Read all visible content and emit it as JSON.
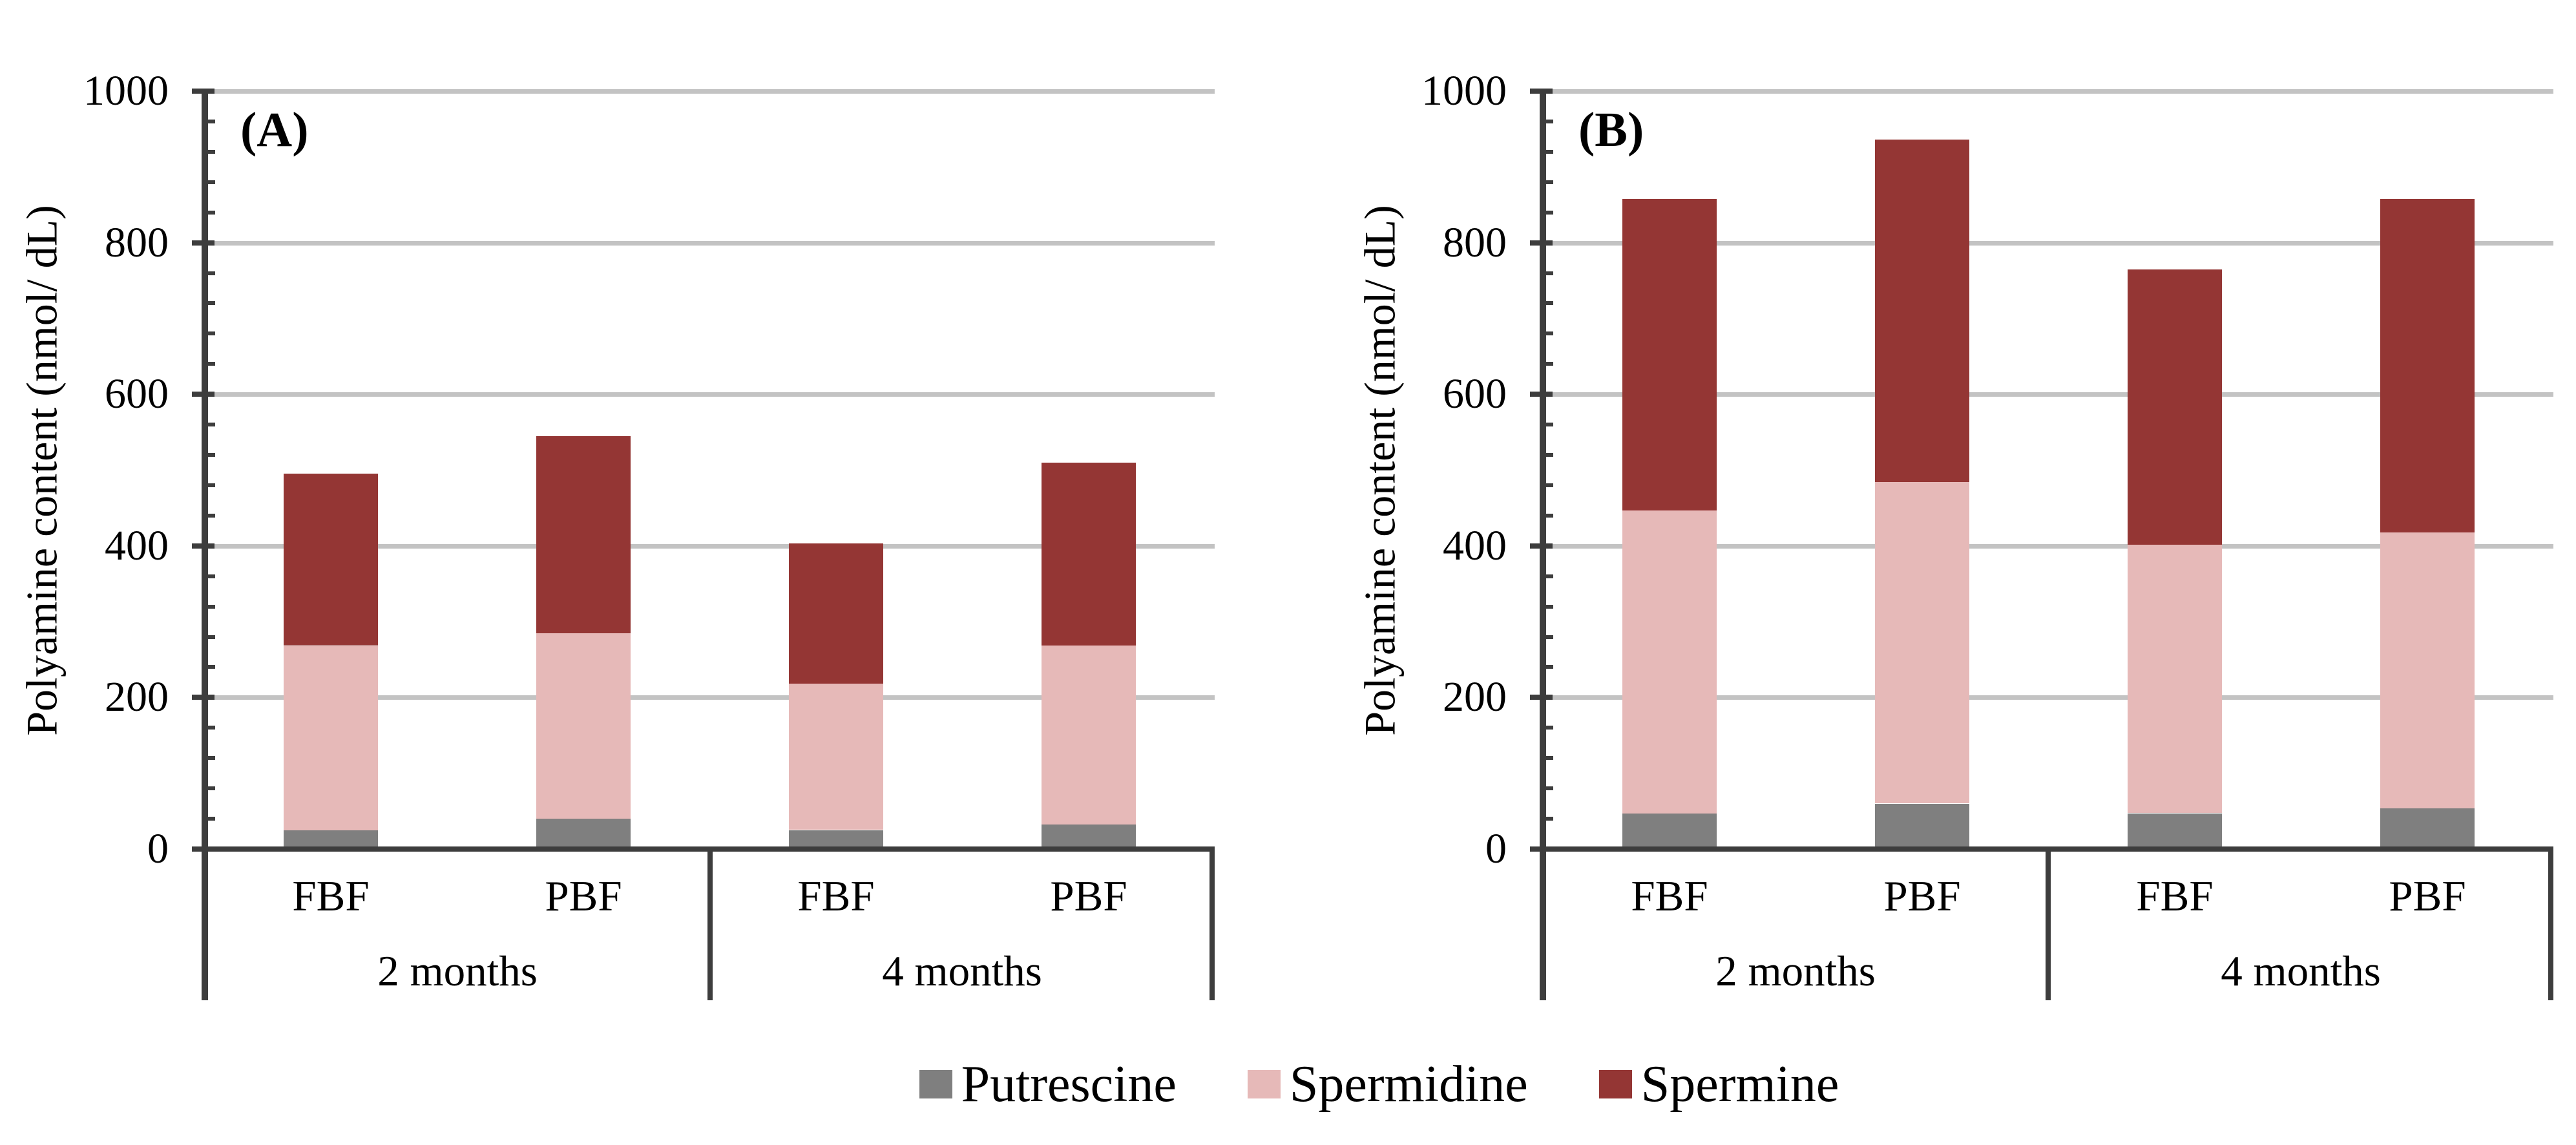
{
  "axis_text": {
    "y_tick_labels": [
      "0",
      "200",
      "400",
      "600",
      "800",
      "1000"
    ]
  },
  "chart_data": [
    {
      "type": "bar",
      "stacked": true,
      "panel_label": "(A)",
      "ylabel": "Polyamine content (nmol/ dL)",
      "ylim": [
        0,
        1000
      ],
      "ytick_step": 200,
      "minor_tick_step": 40,
      "grid": true,
      "group_labels": [
        "2 months",
        "4 months"
      ],
      "categories": [
        "FBF",
        "PBF",
        "FBF",
        "PBF"
      ],
      "series": [
        {
          "name": "Putrescine",
          "color": "#7f7f7f",
          "values": [
            25,
            40,
            25,
            32
          ]
        },
        {
          "name": "Spermidine",
          "color": "#e6b9b8",
          "values": [
            243,
            245,
            193,
            237
          ]
        },
        {
          "name": "Spermine",
          "color": "#943634",
          "values": [
            227,
            260,
            185,
            241
          ]
        }
      ],
      "stack_totals": [
        495,
        545,
        403,
        510
      ]
    },
    {
      "type": "bar",
      "stacked": true,
      "panel_label": "(B)",
      "ylabel": "Polyamine content (nmol/ dL)",
      "ylim": [
        0,
        1000
      ],
      "ytick_step": 200,
      "minor_tick_step": 40,
      "grid": true,
      "group_labels": [
        "2 months",
        "4 months"
      ],
      "categories": [
        "FBF",
        "PBF",
        "FBF",
        "PBF"
      ],
      "series": [
        {
          "name": "Putrescine",
          "color": "#7f7f7f",
          "values": [
            47,
            60,
            47,
            54
          ]
        },
        {
          "name": "Spermidine",
          "color": "#e6b9b8",
          "values": [
            400,
            424,
            355,
            364
          ]
        },
        {
          "name": "Spermine",
          "color": "#943634",
          "values": [
            411,
            452,
            363,
            440
          ]
        }
      ],
      "stack_totals": [
        858,
        936,
        765,
        858
      ]
    }
  ],
  "legend": {
    "position": "bottom-center",
    "items": [
      {
        "label": "Putrescine",
        "color": "#7f7f7f"
      },
      {
        "label": "Spermidine",
        "color": "#e6b9b8"
      },
      {
        "label": "Spermine",
        "color": "#943634"
      }
    ]
  }
}
